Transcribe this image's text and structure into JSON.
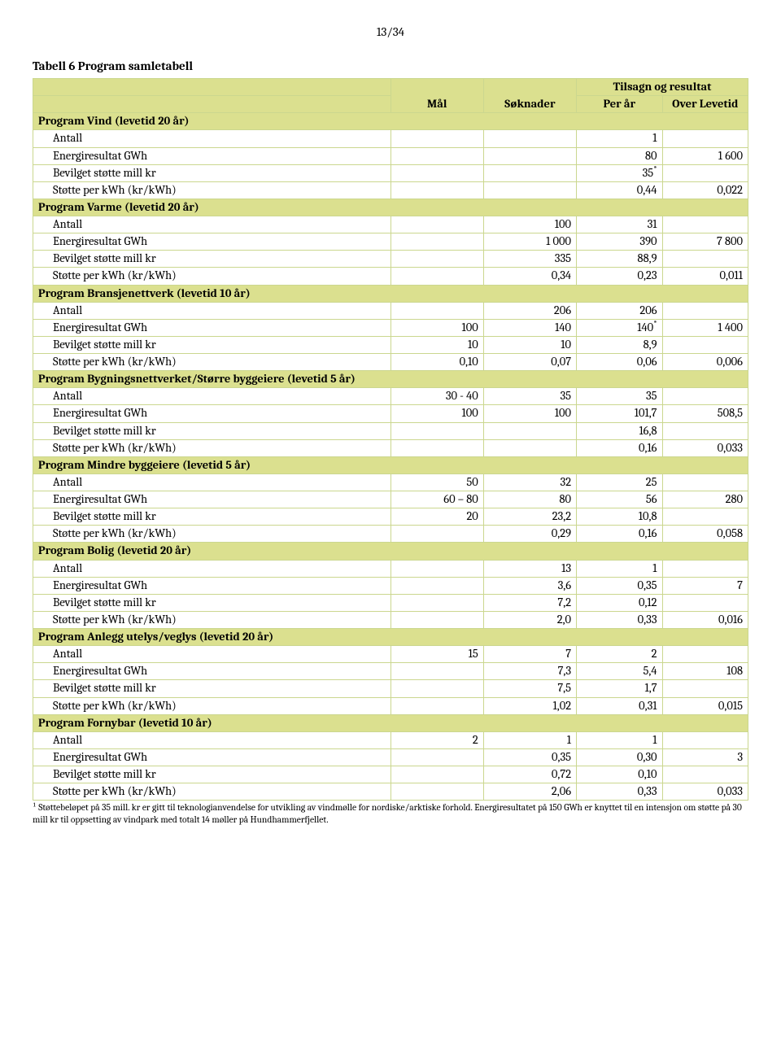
{
  "page_number": "13/34",
  "table_title": "Tabell 6 Program samletabell",
  "colors": {
    "header_bg": "#dbe08f",
    "border": "#cbd78f",
    "text": "#000000",
    "page_bg": "#ffffff"
  },
  "headers": {
    "mal": "Mål",
    "soknader": "Søknader",
    "tilsagn": "Tilsagn og resultat",
    "per_ar": "Per år",
    "over_levetid": "Over Levetid"
  },
  "row_labels": {
    "antall": "Antall",
    "energi": "Energiresultat GWh",
    "bevilget": "Bevilget støtte  mill kr",
    "stotte": "Støtte per kWh (kr/kWh)"
  },
  "sections": [
    {
      "title": "Program Vind (levetid 20 år)",
      "rows": {
        "antall": {
          "mal": "",
          "sok": "",
          "per": "1",
          "lev": ""
        },
        "energi": {
          "mal": "",
          "sok": "",
          "per": "80",
          "lev": "1 600"
        },
        "bevilget": {
          "mal": "",
          "sok": "",
          "per": "35*",
          "lev": ""
        },
        "stotte": {
          "mal": "",
          "sok": "",
          "per": "0,44",
          "lev": "0,022"
        }
      }
    },
    {
      "title": "Program Varme (levetid 20 år)",
      "rows": {
        "antall": {
          "mal": "",
          "sok": "100",
          "per": "31",
          "lev": ""
        },
        "energi": {
          "mal": "",
          "sok": "1 000",
          "per": "390",
          "lev": "7 800"
        },
        "bevilget": {
          "mal": "",
          "sok": "335",
          "per": "88,9",
          "lev": ""
        },
        "stotte": {
          "mal": "",
          "sok": "0,34",
          "per": "0,23",
          "lev": "0,011"
        }
      }
    },
    {
      "title": "Program Bransjenettverk (levetid 10 år)",
      "rows": {
        "antall": {
          "mal": "",
          "sok": "206",
          "per": "206",
          "lev": ""
        },
        "energi": {
          "mal": "100",
          "sok": "140",
          "per": "140*",
          "lev": "1 400"
        },
        "bevilget": {
          "mal": "10",
          "sok": "10",
          "per": "8,9",
          "lev": ""
        },
        "stotte": {
          "mal": "0,10",
          "sok": "0,07",
          "per": "0,06",
          "lev": "0,006"
        }
      }
    },
    {
      "title": "Program Bygningsnettverket/Større byggeiere (levetid 5 år)",
      "rows": {
        "antall": {
          "mal": "30 - 40",
          "sok": "35",
          "per": "35",
          "lev": ""
        },
        "energi": {
          "mal": "100",
          "sok": "100",
          "per": "101,7",
          "lev": "508,5"
        },
        "bevilget": {
          "mal": "",
          "sok": "",
          "per": "16,8",
          "lev": ""
        },
        "stotte": {
          "mal": "",
          "sok": "",
          "per": "0,16",
          "lev": "0,033"
        }
      }
    },
    {
      "title": "Program Mindre byggeiere (levetid 5 år)",
      "rows": {
        "antall": {
          "mal": "50",
          "sok": "32",
          "per": "25",
          "lev": ""
        },
        "energi": {
          "mal": "60 – 80",
          "sok": "80",
          "per": "56",
          "lev": "280"
        },
        "bevilget": {
          "mal": "20",
          "sok": "23,2",
          "per": "10,8",
          "lev": ""
        },
        "stotte": {
          "mal": "",
          "sok": "0,29",
          "per": "0,16",
          "lev": "0,058"
        }
      }
    },
    {
      "title": "Program Bolig (levetid 20 år)",
      "rows": {
        "antall": {
          "mal": "",
          "sok": "13",
          "per": "1",
          "lev": ""
        },
        "energi": {
          "mal": "",
          "sok": "3,6",
          "per": "0,35",
          "lev": "7"
        },
        "bevilget": {
          "mal": "",
          "sok": "7,2",
          "per": "0,12",
          "lev": ""
        },
        "stotte": {
          "mal": "",
          "sok": "2,0",
          "per": "0,33",
          "lev": "0,016"
        }
      }
    },
    {
      "title": "Program Anlegg utelys/veglys (levetid 20 år)",
      "rows": {
        "antall": {
          "mal": "15",
          "sok": "7",
          "per": "2",
          "lev": ""
        },
        "energi": {
          "mal": "",
          "sok": "7,3",
          "per": "5,4",
          "lev": "108"
        },
        "bevilget": {
          "mal": "",
          "sok": "7,5",
          "per": "1,7",
          "lev": ""
        },
        "stotte": {
          "mal": "",
          "sok": "1,02",
          "per": "0,31",
          "lev": "0,015"
        }
      }
    },
    {
      "title": "Program Fornybar (levetid 10 år)",
      "rows": {
        "antall": {
          "mal": "2",
          "sok": "1",
          "per": "1",
          "lev": ""
        },
        "energi": {
          "mal": "",
          "sok": "0,35",
          "per": "0,30",
          "lev": "3"
        },
        "bevilget": {
          "mal": "",
          "sok": "0,72",
          "per": "0,10",
          "lev": ""
        },
        "stotte": {
          "mal": "",
          "sok": "2,06",
          "per": "0,33",
          "lev": "0,033"
        }
      }
    }
  ],
  "footnote": "¹ Støttebeløpet på 35 mill. kr er gitt til teknologianvendelse for utvikling av vindmølle for nordiske/arktiske forhold. Energiresultatet på 150 GWh er knyttet til en intensjon om støtte på 30 mill kr til oppsetting av vindpark med totalt 14 møller på Hundhammerfjellet."
}
